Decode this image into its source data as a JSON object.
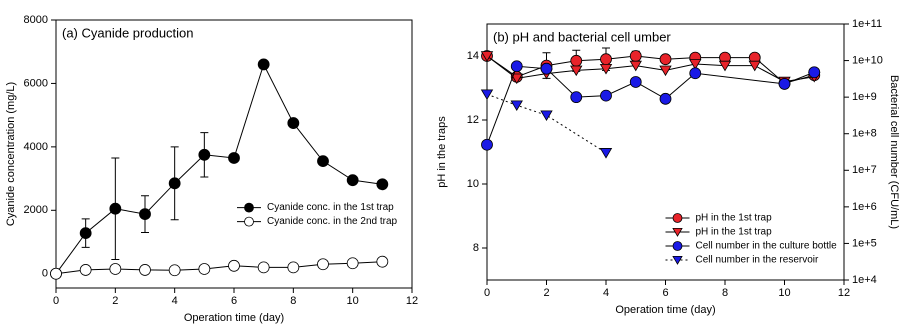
{
  "chart_data": [
    {
      "type": "line",
      "title": "(a) Cyanide production",
      "xlabel": "Operation time (day)",
      "ylabel": "Cyanide concentration (mg/L)",
      "xlim": [
        0,
        12
      ],
      "xticks": [
        0,
        2,
        4,
        6,
        8,
        10,
        12
      ],
      "ylim": [
        -450,
        8000
      ],
      "yticks": [
        0,
        2000,
        4000,
        6000,
        8000
      ],
      "legend": "center right",
      "series": [
        {
          "name": "Cyanide conc. in the 1st trap",
          "color": "#000000",
          "marker": "circle",
          "x": [
            0,
            1,
            2,
            3,
            4,
            5,
            6,
            7,
            8,
            9,
            10,
            11
          ],
          "values": [
            0,
            1280,
            2050,
            1880,
            2850,
            3750,
            3650,
            6600,
            4750,
            3550,
            2950,
            2820
          ],
          "errors": [
            null,
            450,
            1600,
            580,
            1150,
            700,
            null,
            null,
            null,
            null,
            null,
            null
          ]
        },
        {
          "name": "Cyanide conc. in the 2nd trap",
          "color": "#000000",
          "marker": "circle-open",
          "x": [
            0,
            1,
            2,
            3,
            4,
            5,
            6,
            7,
            8,
            9,
            10,
            11
          ],
          "values": [
            0,
            120,
            150,
            120,
            110,
            150,
            250,
            200,
            200,
            300,
            330,
            380
          ]
        }
      ]
    },
    {
      "type": "line",
      "title": "(b) pH and bacterial cell  umber",
      "xlabel": "Operation time (day)",
      "ylabel": "pH in the traps",
      "y2label": "Bacterial cell number (CFU/mL)",
      "xlim": [
        0,
        12
      ],
      "xticks": [
        0,
        2,
        4,
        6,
        8,
        10,
        12
      ],
      "ylim": [
        7,
        15
      ],
      "yticks": [
        8,
        10,
        12,
        14
      ],
      "y2lim": [
        10000,
        100000000000
      ],
      "y2log": true,
      "y2ticks": [
        {
          "value": 10000,
          "label": "1e+4"
        },
        {
          "value": 100000,
          "label": "1e+5"
        },
        {
          "value": 1000000,
          "label": "1e+6"
        },
        {
          "value": 10000000,
          "label": "1e+7"
        },
        {
          "value": 100000000,
          "label": "1e+8"
        },
        {
          "value": 1000000000,
          "label": "1e+9"
        },
        {
          "value": 10000000000,
          "label": "1e+10"
        },
        {
          "value": 100000000000,
          "label": "1e+11"
        }
      ],
      "legend": "lower center",
      "series": [
        {
          "name": "pH in the 1st trap",
          "color": "#e8232a",
          "line_color": "#000000",
          "marker": "circle",
          "x": [
            0,
            1,
            2,
            3,
            4,
            5,
            6,
            7,
            8,
            9,
            10,
            11
          ],
          "values": [
            14.0,
            13.35,
            13.7,
            13.85,
            13.9,
            14.0,
            13.9,
            13.95,
            13.95,
            13.95,
            13.15,
            13.4
          ],
          "errors": [
            null,
            0.1,
            0.4,
            0.33,
            0.35,
            0.15,
            null,
            null,
            null,
            null,
            null,
            null
          ]
        },
        {
          "name": "pH in the 1st trap",
          "color": "#e8232a",
          "line_color": "#000000",
          "marker": "triangle-down",
          "x": [
            0,
            1,
            2,
            3,
            4,
            5,
            6,
            7,
            8,
            9,
            10,
            11
          ],
          "values": [
            14.0,
            13.3,
            13.45,
            13.55,
            13.6,
            13.7,
            13.55,
            13.75,
            13.7,
            13.7,
            13.2,
            13.35
          ]
        },
        {
          "name": "Cell number in the culture bottle",
          "color": "#1a1ae6",
          "line_color": "#000000",
          "marker": "circle",
          "axis": "y2",
          "x": [
            0,
            1,
            2,
            3,
            4,
            5,
            6,
            7,
            10,
            11
          ],
          "values": [
            50000000,
            7000000000,
            6000000000,
            1000000000,
            1100000000,
            2600000000,
            900000000,
            4500000000,
            2300000000,
            4800000000
          ]
        },
        {
          "name": "Cell number in the reservoir",
          "color": "#1a1ae6",
          "line_color": "#000000",
          "marker": "triangle-down",
          "axis": "y2",
          "line_style": "dotted",
          "x": [
            0,
            1,
            2,
            4
          ],
          "values": [
            1200000000,
            600000000,
            320000000,
            30000000
          ]
        }
      ]
    }
  ]
}
